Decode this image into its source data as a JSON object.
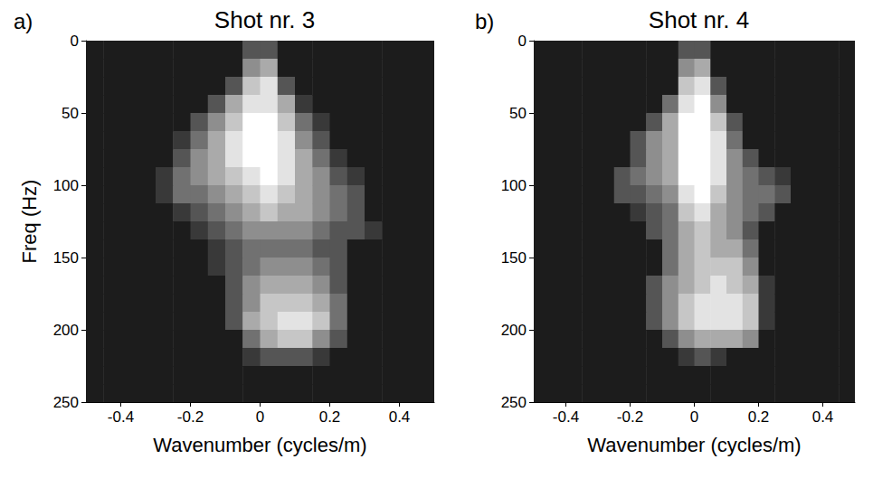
{
  "chart_data": [
    {
      "type": "heatmap",
      "panel": "a)",
      "title": "Shot nr. 3",
      "x_label": "Wavenumber (cycles/m)",
      "y_label": "Freq (Hz)",
      "xlim": [
        -0.5,
        0.5
      ],
      "xticks": [
        -0.4,
        -0.2,
        0,
        0.2,
        0.4
      ],
      "ylim": [
        0,
        250
      ],
      "yticks": [
        0,
        50,
        100,
        150,
        200,
        250
      ],
      "color_range": [
        0,
        9
      ],
      "x": [
        -0.475,
        -0.425,
        -0.375,
        -0.325,
        -0.275,
        -0.225,
        -0.175,
        -0.125,
        -0.075,
        -0.025,
        0.025,
        0.075,
        0.125,
        0.175,
        0.225,
        0.275,
        0.325,
        0.375,
        0.425,
        0.475
      ],
      "y": [
        6.25,
        18.75,
        31.25,
        43.75,
        56.25,
        68.75,
        81.25,
        93.75,
        106.25,
        118.75,
        131.25,
        143.75,
        156.25,
        168.75,
        181.25,
        193.75,
        206.25,
        218.75,
        231.25,
        243.75
      ],
      "cells": [
        [
          1,
          1,
          1,
          1,
          1,
          1,
          1,
          1,
          1,
          3,
          3,
          1,
          1,
          1,
          1,
          1,
          1,
          1,
          1,
          1
        ],
        [
          1,
          1,
          1,
          1,
          1,
          1,
          1,
          1,
          1,
          5,
          6,
          1,
          1,
          1,
          1,
          1,
          1,
          1,
          1,
          1
        ],
        [
          1,
          1,
          1,
          1,
          1,
          1,
          1,
          1,
          3,
          7,
          8,
          3,
          1,
          1,
          1,
          1,
          1,
          1,
          1,
          1
        ],
        [
          1,
          1,
          1,
          1,
          1,
          1,
          1,
          3,
          6,
          8,
          8,
          6,
          2,
          1,
          1,
          1,
          1,
          1,
          1,
          1
        ],
        [
          1,
          1,
          1,
          1,
          1,
          1,
          3,
          5,
          7,
          9,
          9,
          7,
          4,
          2,
          1,
          1,
          1,
          1,
          1,
          1
        ],
        [
          1,
          1,
          1,
          1,
          1,
          2,
          4,
          6,
          8,
          9,
          9,
          8,
          5,
          3,
          1,
          1,
          1,
          1,
          1,
          1
        ],
        [
          1,
          1,
          1,
          1,
          1,
          3,
          5,
          6,
          8,
          9,
          9,
          8,
          6,
          4,
          2,
          1,
          1,
          1,
          1,
          1
        ],
        [
          1,
          1,
          1,
          1,
          2,
          4,
          5,
          6,
          7,
          8,
          9,
          8,
          6,
          5,
          3,
          2,
          1,
          1,
          1,
          1
        ],
        [
          1,
          1,
          1,
          1,
          2,
          4,
          4,
          5,
          6,
          7,
          8,
          7,
          6,
          5,
          4,
          3,
          1,
          1,
          1,
          1
        ],
        [
          1,
          1,
          1,
          1,
          1,
          2,
          3,
          4,
          5,
          6,
          7,
          6,
          6,
          5,
          4,
          3,
          1,
          1,
          1,
          1
        ],
        [
          1,
          1,
          1,
          1,
          1,
          1,
          2,
          3,
          4,
          5,
          5,
          5,
          5,
          4,
          3,
          3,
          2,
          1,
          1,
          1
        ],
        [
          1,
          1,
          1,
          1,
          1,
          1,
          1,
          2,
          3,
          4,
          4,
          4,
          4,
          3,
          3,
          1,
          1,
          1,
          1,
          1
        ],
        [
          1,
          1,
          1,
          1,
          1,
          1,
          1,
          2,
          3,
          4,
          5,
          5,
          5,
          4,
          3,
          1,
          1,
          1,
          1,
          1
        ],
        [
          1,
          1,
          1,
          1,
          1,
          1,
          1,
          1,
          3,
          5,
          6,
          6,
          6,
          5,
          3,
          1,
          1,
          1,
          1,
          1
        ],
        [
          1,
          1,
          1,
          1,
          1,
          1,
          1,
          1,
          3,
          5,
          7,
          7,
          7,
          6,
          4,
          1,
          1,
          1,
          1,
          1
        ],
        [
          1,
          1,
          1,
          1,
          1,
          1,
          1,
          1,
          3,
          6,
          7,
          8,
          8,
          7,
          4,
          1,
          1,
          1,
          1,
          1
        ],
        [
          1,
          1,
          1,
          1,
          1,
          1,
          1,
          1,
          1,
          4,
          6,
          7,
          7,
          5,
          3,
          1,
          1,
          1,
          1,
          1
        ],
        [
          1,
          1,
          1,
          1,
          1,
          1,
          1,
          1,
          1,
          2,
          3,
          3,
          3,
          2,
          1,
          1,
          1,
          1,
          1,
          1
        ],
        [
          1,
          1,
          1,
          1,
          1,
          1,
          1,
          1,
          1,
          1,
          1,
          1,
          1,
          1,
          1,
          1,
          1,
          1,
          1,
          1
        ],
        [
          1,
          1,
          1,
          1,
          1,
          1,
          1,
          1,
          1,
          1,
          1,
          1,
          1,
          1,
          1,
          1,
          1,
          1,
          1,
          1
        ]
      ]
    },
    {
      "type": "heatmap",
      "panel": "b)",
      "title": "Shot nr. 4",
      "x_label": "Wavenumber (cycles/m)",
      "xlim": [
        -0.5,
        0.5
      ],
      "xticks": [
        -0.4,
        -0.2,
        0,
        0.2,
        0.4
      ],
      "ylim": [
        0,
        250
      ],
      "yticks": [
        0,
        50,
        100,
        150,
        200,
        250
      ],
      "color_range": [
        0,
        9
      ],
      "x": [
        -0.475,
        -0.425,
        -0.375,
        -0.325,
        -0.275,
        -0.225,
        -0.175,
        -0.125,
        -0.075,
        -0.025,
        0.025,
        0.075,
        0.125,
        0.175,
        0.225,
        0.275,
        0.325,
        0.375,
        0.425,
        0.475
      ],
      "y": [
        6.25,
        18.75,
        31.25,
        43.75,
        56.25,
        68.75,
        81.25,
        93.75,
        106.25,
        118.75,
        131.25,
        143.75,
        156.25,
        168.75,
        181.25,
        193.75,
        206.25,
        218.75,
        231.25,
        243.75
      ],
      "cells": [
        [
          1,
          1,
          1,
          1,
          1,
          1,
          1,
          1,
          1,
          3,
          3,
          1,
          1,
          1,
          1,
          1,
          1,
          1,
          1,
          1
        ],
        [
          1,
          1,
          1,
          1,
          1,
          1,
          1,
          1,
          1,
          5,
          6,
          1,
          1,
          1,
          1,
          1,
          1,
          1,
          1,
          1
        ],
        [
          1,
          1,
          1,
          1,
          1,
          1,
          1,
          1,
          1,
          7,
          8,
          3,
          1,
          1,
          1,
          1,
          1,
          1,
          1,
          1
        ],
        [
          1,
          1,
          1,
          1,
          1,
          1,
          1,
          1,
          4,
          8,
          9,
          5,
          1,
          1,
          1,
          1,
          1,
          1,
          1,
          1
        ],
        [
          1,
          1,
          1,
          1,
          1,
          1,
          1,
          3,
          6,
          9,
          9,
          7,
          3,
          1,
          1,
          1,
          1,
          1,
          1,
          1
        ],
        [
          1,
          1,
          1,
          1,
          1,
          1,
          3,
          5,
          6,
          9,
          9,
          8,
          4,
          1,
          1,
          1,
          1,
          1,
          1,
          1
        ],
        [
          1,
          1,
          1,
          1,
          1,
          1,
          3,
          5,
          6,
          9,
          9,
          8,
          5,
          3,
          1,
          1,
          1,
          1,
          1,
          1
        ],
        [
          1,
          1,
          1,
          1,
          1,
          3,
          4,
          5,
          6,
          9,
          9,
          8,
          5,
          4,
          3,
          2,
          1,
          1,
          1,
          1
        ],
        [
          1,
          1,
          1,
          1,
          1,
          3,
          3,
          4,
          5,
          8,
          9,
          7,
          5,
          4,
          4,
          3,
          1,
          1,
          1,
          1
        ],
        [
          1,
          1,
          1,
          1,
          1,
          1,
          2,
          3,
          4,
          7,
          8,
          6,
          5,
          4,
          3,
          1,
          1,
          1,
          1,
          1
        ],
        [
          1,
          1,
          1,
          1,
          1,
          1,
          1,
          3,
          4,
          6,
          7,
          6,
          5,
          3,
          1,
          1,
          1,
          1,
          1,
          1
        ],
        [
          1,
          1,
          1,
          1,
          1,
          1,
          1,
          1,
          4,
          6,
          7,
          6,
          6,
          4,
          1,
          1,
          1,
          1,
          1,
          1
        ],
        [
          1,
          1,
          1,
          1,
          1,
          1,
          1,
          1,
          4,
          6,
          7,
          7,
          7,
          5,
          1,
          1,
          1,
          1,
          1,
          1
        ],
        [
          1,
          1,
          1,
          1,
          1,
          1,
          1,
          3,
          5,
          6,
          7,
          8,
          7,
          6,
          2,
          1,
          1,
          1,
          1,
          1
        ],
        [
          1,
          1,
          1,
          1,
          1,
          1,
          1,
          3,
          5,
          7,
          8,
          8,
          8,
          7,
          2,
          1,
          1,
          1,
          1,
          1
        ],
        [
          1,
          1,
          1,
          1,
          1,
          1,
          1,
          3,
          5,
          7,
          8,
          8,
          8,
          7,
          2,
          1,
          1,
          1,
          1,
          1
        ],
        [
          1,
          1,
          1,
          1,
          1,
          1,
          1,
          1,
          3,
          5,
          6,
          6,
          6,
          5,
          1,
          1,
          1,
          1,
          1,
          1
        ],
        [
          1,
          1,
          1,
          1,
          1,
          1,
          1,
          1,
          1,
          2,
          3,
          2,
          1,
          1,
          1,
          1,
          1,
          1,
          1,
          1
        ],
        [
          1,
          1,
          1,
          1,
          1,
          1,
          1,
          1,
          1,
          1,
          1,
          1,
          1,
          1,
          1,
          1,
          1,
          1,
          1,
          1
        ],
        [
          1,
          1,
          1,
          1,
          1,
          1,
          1,
          1,
          1,
          1,
          1,
          1,
          1,
          1,
          1,
          1,
          1,
          1,
          1,
          1
        ]
      ]
    }
  ]
}
